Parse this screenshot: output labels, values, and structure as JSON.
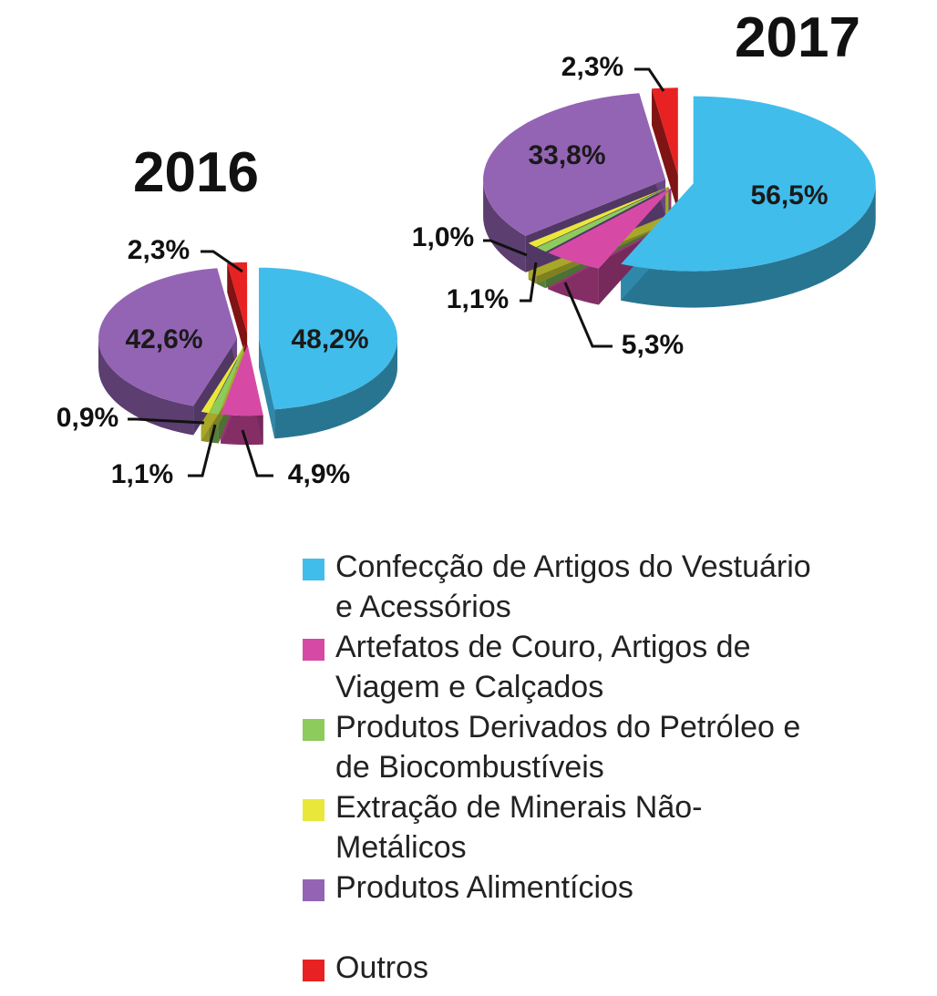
{
  "chart_data": [
    {
      "type": "pie",
      "title": "2016",
      "series": [
        {
          "name": "Confecção de Artigos do Vestuário e Acessórios",
          "value": 48.2,
          "label": "48,2%"
        },
        {
          "name": "Artefatos de Couro, Artigos de Viagem e Calçados",
          "value": 4.9,
          "label": "4,9%"
        },
        {
          "name": "Produtos Derivados do Petróleo e de Biocombustíveis",
          "value": 1.1,
          "label": "1,1%"
        },
        {
          "name": "Extração de Minerais Não-Metálicos",
          "value": 0.9,
          "label": "0,9%"
        },
        {
          "name": "Produtos Alimentícios",
          "value": 42.6,
          "label": "42,6%"
        },
        {
          "name": "Outros",
          "value": 2.3,
          "label": "2,3%"
        }
      ]
    },
    {
      "type": "pie",
      "title": "2017",
      "series": [
        {
          "name": "Confecção de Artigos do Vestuário e Acessórios",
          "value": 56.5,
          "label": "56,5%"
        },
        {
          "name": "Artefatos de Couro, Artigos de Viagem e Calçados",
          "value": 5.3,
          "label": "5,3%"
        },
        {
          "name": "Produtos Derivados do Petróleo e de Biocombustíveis",
          "value": 1.1,
          "label": "1,1%"
        },
        {
          "name": "Extração de Minerais Não-Metálicos",
          "value": 1.0,
          "label": "1,0%"
        },
        {
          "name": "Produtos Alimentícios",
          "value": 33.8,
          "label": "33,8%"
        },
        {
          "name": "Outros",
          "value": 2.3,
          "label": "2,3%"
        }
      ]
    }
  ],
  "legend": [
    {
      "name": "Confecção de Artigos do Vestuário e Acessórios",
      "line1": "Confecção de Artigos do Vestuário",
      "line2": "e Acessórios",
      "color": "#41bdeb"
    },
    {
      "name": "Artefatos de Couro, Artigos de Viagem e Calçados",
      "line1": "Artefatos de Couro, Artigos de",
      "line2": "Viagem e Calçados",
      "color": "#d64aa5"
    },
    {
      "name": "Produtos Derivados do Petróleo e de Biocombustíveis",
      "line1": "Produtos Derivados do Petróleo e",
      "line2": "de Biocombustíveis",
      "color": "#8ccb5c"
    },
    {
      "name": "Extração de Minerais Não-Metálicos",
      "line1": "Extração de Minerais Não-",
      "line2": "Metálicos",
      "color": "#e9e83a"
    },
    {
      "name": "Produtos Alimentícios",
      "line1": "Produtos Alimentícios",
      "line2": "",
      "color": "#9464b4"
    },
    {
      "name": "Outros",
      "line1": "Outros",
      "line2": "",
      "color": "#e82222"
    }
  ]
}
